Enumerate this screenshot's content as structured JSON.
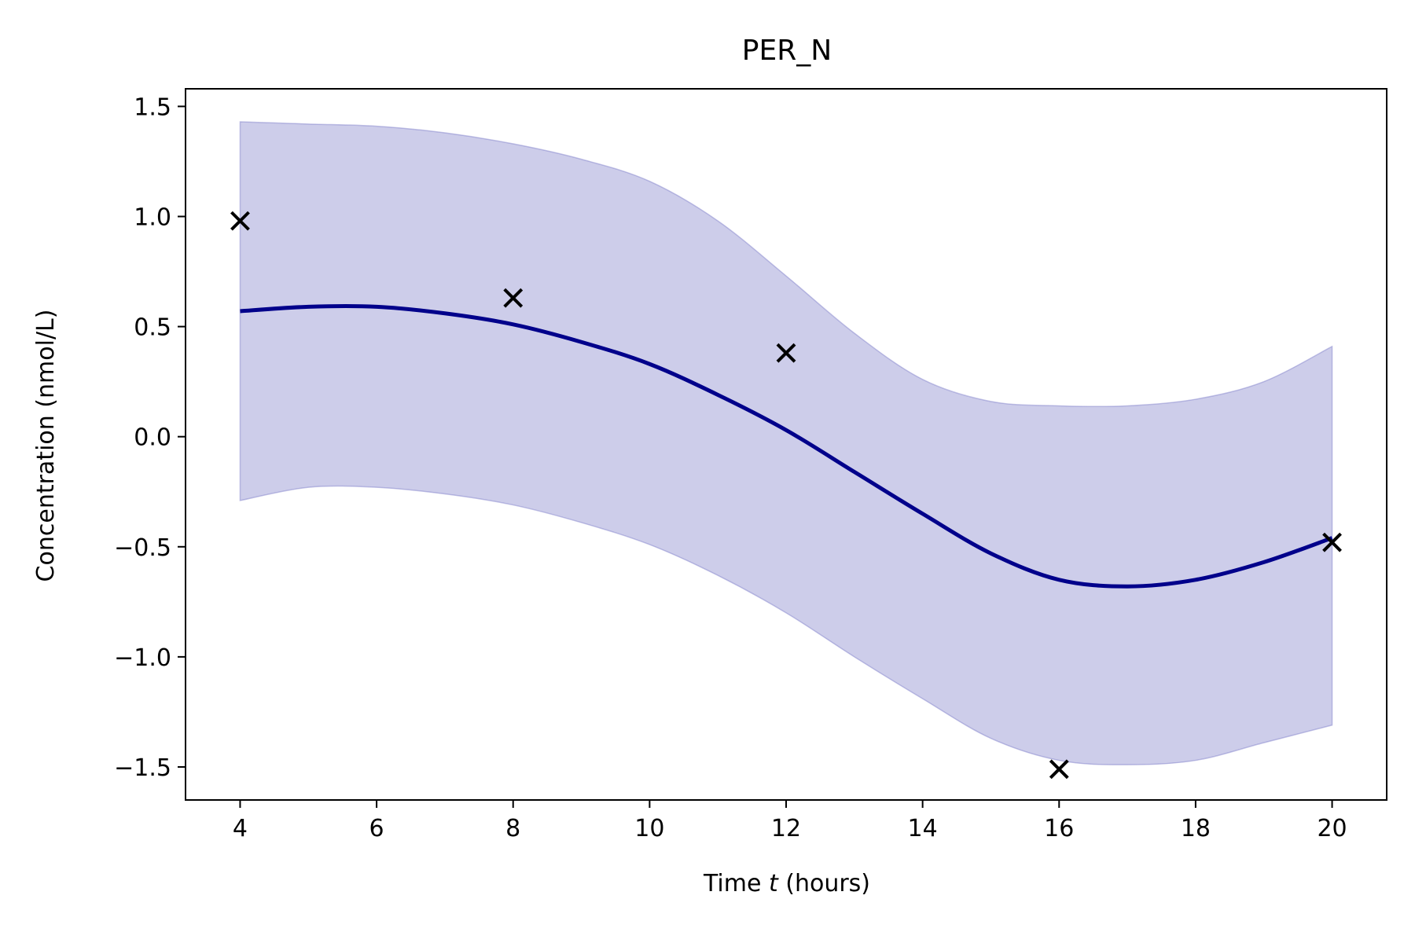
{
  "chart_data": {
    "type": "line",
    "title": "PER_N",
    "xlabel_prefix": "Time ",
    "xlabel_var": "t",
    "xlabel_suffix": " (hours)",
    "ylabel": "Concentration (nmol/L)",
    "xlim": [
      3.2,
      20.8
    ],
    "ylim": [
      -1.65,
      1.58
    ],
    "xticks": [
      4,
      6,
      8,
      10,
      12,
      14,
      16,
      18,
      20
    ],
    "xtick_labels": [
      "4",
      "6",
      "8",
      "10",
      "12",
      "14",
      "16",
      "18",
      "20"
    ],
    "yticks": [
      -1.5,
      -1.0,
      -0.5,
      0.0,
      0.5,
      1.0,
      1.5
    ],
    "ytick_labels": [
      "−1.5",
      "−1.0",
      "−0.5",
      "0.0",
      "0.5",
      "1.0",
      "1.5"
    ],
    "grid": false,
    "series": [
      {
        "kind": "mean",
        "x": [
          4,
          5,
          6,
          7,
          8,
          9,
          10,
          11,
          12,
          13,
          14,
          15,
          16,
          17,
          18,
          19,
          20
        ],
        "y": [
          0.57,
          0.59,
          0.59,
          0.56,
          0.51,
          0.43,
          0.33,
          0.19,
          0.03,
          -0.16,
          -0.35,
          -0.53,
          -0.65,
          -0.68,
          -0.65,
          -0.57,
          -0.46
        ],
        "color": "#00008b"
      },
      {
        "kind": "band",
        "x": [
          4,
          5,
          6,
          7,
          8,
          9,
          10,
          11,
          12,
          13,
          14,
          15,
          16,
          17,
          18,
          19,
          20
        ],
        "upper": [
          1.43,
          1.42,
          1.41,
          1.38,
          1.33,
          1.26,
          1.16,
          0.98,
          0.73,
          0.47,
          0.26,
          0.16,
          0.14,
          0.14,
          0.17,
          0.25,
          0.41
        ],
        "lower": [
          -0.29,
          -0.23,
          -0.23,
          -0.26,
          -0.31,
          -0.39,
          -0.49,
          -0.63,
          -0.8,
          -1.0,
          -1.19,
          -1.37,
          -1.47,
          -1.49,
          -1.47,
          -1.39,
          -1.31
        ],
        "color": "#7b7bc8"
      },
      {
        "kind": "observations",
        "marker": "x",
        "x": [
          4,
          8,
          12,
          16,
          20
        ],
        "y": [
          0.98,
          0.63,
          0.38,
          -1.51,
          -0.48
        ],
        "color": "#000000"
      }
    ]
  }
}
